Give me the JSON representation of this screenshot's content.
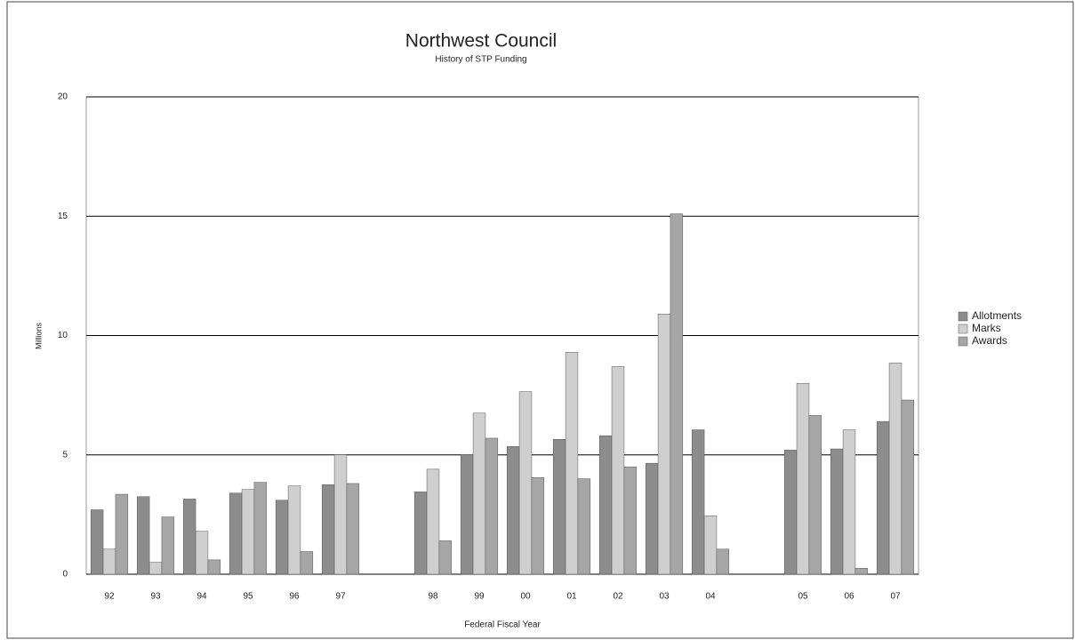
{
  "chart_data": {
    "type": "bar",
    "title": "Northwest Council",
    "subtitle": "History of STP Funding",
    "x_label": "Federal Fiscal Year",
    "y_label": "Millions",
    "categories": [
      "92",
      "93",
      "94",
      "95",
      "96",
      "97",
      null,
      "98",
      "99",
      "00",
      "01",
      "02",
      "03",
      "04",
      null,
      "05",
      "06",
      "07"
    ],
    "series": [
      {
        "name": "Allotments",
        "color": "#8c8c8c",
        "values": [
          2.7,
          3.25,
          3.15,
          3.4,
          3.1,
          3.75,
          null,
          3.45,
          5.0,
          5.35,
          5.65,
          5.8,
          4.65,
          6.05,
          null,
          5.2,
          5.25,
          6.4
        ]
      },
      {
        "name": "Marks",
        "color": "#cfcfcf",
        "values": [
          1.05,
          0.5,
          1.8,
          3.55,
          3.7,
          5.0,
          null,
          4.4,
          6.75,
          7.65,
          9.3,
          8.7,
          10.9,
          2.45,
          null,
          8.0,
          6.05,
          8.85
        ]
      },
      {
        "name": "Awards",
        "color": "#a6a6a6",
        "values": [
          3.35,
          2.4,
          0.6,
          3.85,
          0.95,
          3.8,
          null,
          1.4,
          5.7,
          4.05,
          4.0,
          4.5,
          15.1,
          1.05,
          null,
          6.65,
          0.25,
          7.3
        ]
      }
    ],
    "ylim": [
      0,
      20
    ],
    "yticks": [
      0,
      5,
      10,
      15,
      20
    ],
    "grid": true,
    "legend": "right"
  }
}
